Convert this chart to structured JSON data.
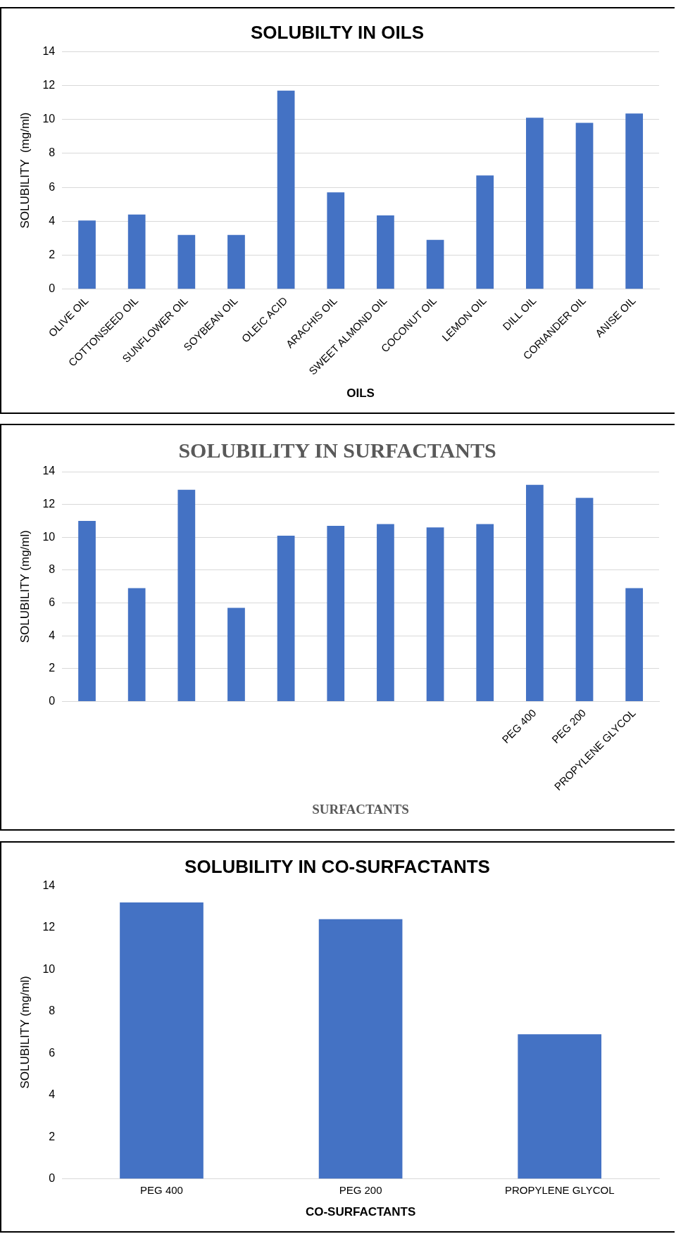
{
  "chart_data": [
    {
      "type": "bar",
      "title": "SOLUBILTY IN OILS",
      "xlabel": "OILS",
      "ylabel": "SOLUBILITY  (mg/ml)",
      "categories": [
        "OLIVE OIL",
        "COTTONSEED OIL",
        "SUNFLOWER OIL",
        "SOYBEAN OIL",
        "OLEIC ACID",
        "ARACHIS OIL",
        "SWEET ALMOND OIL",
        "COCONUT OIL",
        "LEMON OIL",
        "DILL OIL",
        "CORIANDER OIL",
        "ANISE OIL"
      ],
      "values": [
        4.05,
        4.4,
        3.2,
        3.2,
        11.7,
        5.7,
        4.35,
        2.9,
        6.7,
        10.1,
        9.8,
        10.35
      ],
      "color": "#4472c4",
      "ylim": [
        0,
        14
      ],
      "yticks": [
        0,
        2,
        4,
        6,
        8,
        10,
        12,
        14
      ],
      "grid": "y"
    },
    {
      "type": "bar",
      "title": "SOLUBILITY IN SURFACTANTS",
      "xlabel": "SURFACTANTS",
      "ylabel": "SOLUBILITY (mg/ml)",
      "categories": [
        null,
        null,
        null,
        null,
        null,
        null,
        null,
        null,
        null,
        "PEG 400",
        "PEG 200",
        "PROPYLENE GLYCOL"
      ],
      "values": [
        11.0,
        6.9,
        12.9,
        5.7,
        10.1,
        10.7,
        10.8,
        10.6,
        10.8,
        13.2,
        12.4,
        6.9
      ],
      "color": "#4472c4",
      "ylim": [
        0,
        14
      ],
      "yticks": [
        0,
        2,
        4,
        6,
        8,
        10,
        12,
        14
      ],
      "grid": "y"
    },
    {
      "type": "bar",
      "title": "SOLUBILITY IN CO-SURFACTANTS",
      "xlabel": "CO-SURFACTANTS",
      "ylabel": "SOLUBILITY (mg/ml)",
      "categories": [
        "PEG 400",
        "PEG 200",
        "PROPYLENE GLYCOL"
      ],
      "values": [
        13.2,
        12.4,
        6.9
      ],
      "color": "#4472c4",
      "ylim": [
        0,
        14
      ],
      "yticks": [
        0,
        2,
        4,
        6,
        8,
        10,
        12,
        14
      ],
      "grid": false
    }
  ]
}
